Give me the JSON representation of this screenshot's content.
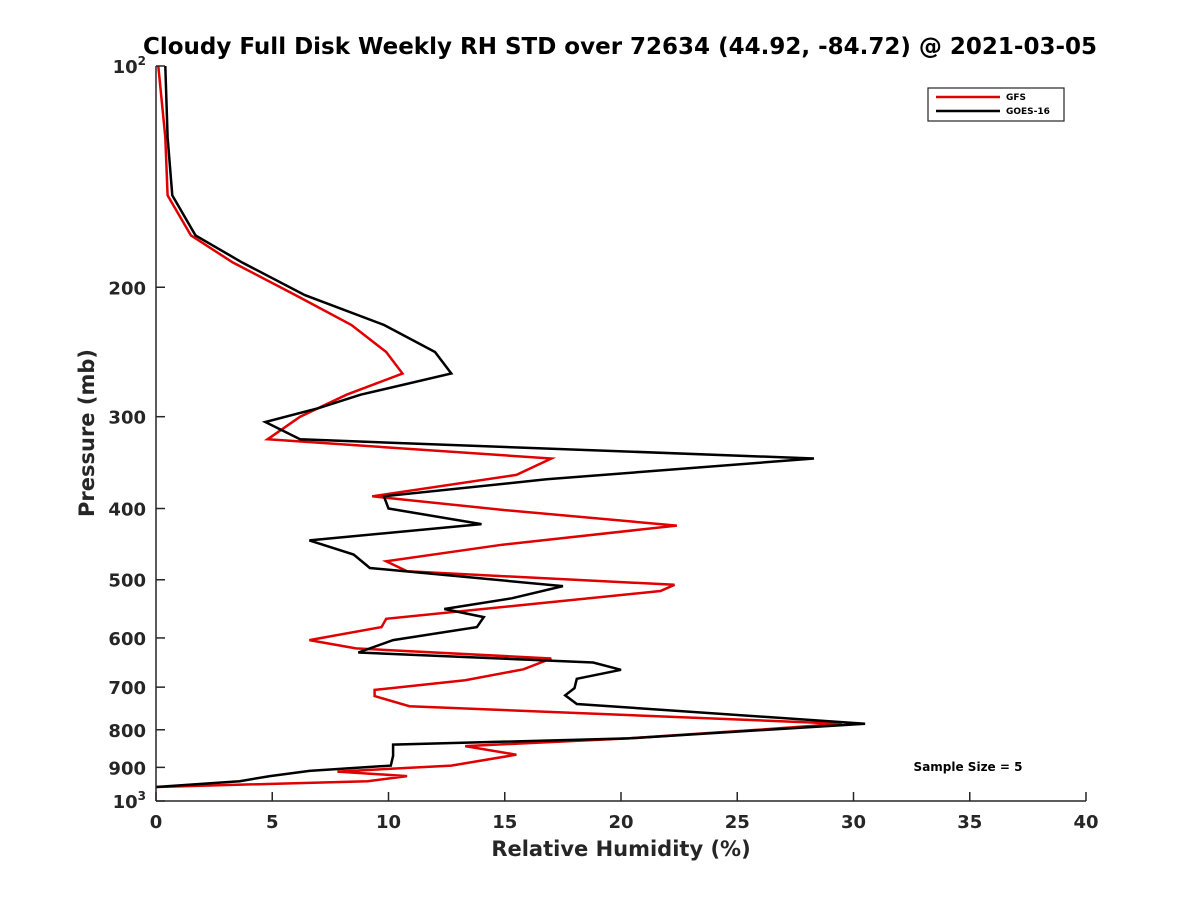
{
  "chart_data": {
    "type": "line",
    "title": "Cloudy Full Disk Weekly RH STD over 72634 (44.92, -84.72) @ 2021-03-05",
    "xlabel": "Relative Humidity (%)",
    "ylabel": "Pressure (mb)",
    "xlim": [
      0,
      40
    ],
    "ylim": [
      100,
      1000
    ],
    "y_scale": "log",
    "y_reversed": true,
    "x_ticks": [
      0,
      5,
      10,
      15,
      20,
      25,
      30,
      35,
      40
    ],
    "y_ticks": [
      {
        "value": 100,
        "base": "10",
        "exp": "2"
      },
      {
        "value": 200,
        "label": "200"
      },
      {
        "value": 300,
        "label": "300"
      },
      {
        "value": 400,
        "label": "400"
      },
      {
        "value": 500,
        "label": "500"
      },
      {
        "value": 600,
        "label": "600"
      },
      {
        "value": 700,
        "label": "700"
      },
      {
        "value": 800,
        "label": "800"
      },
      {
        "value": 900,
        "label": "900"
      },
      {
        "value": 1000,
        "base": "10",
        "exp": "3"
      }
    ],
    "grid": false,
    "legend_position": "top-right",
    "annotation": "Sample Size = 5",
    "series": [
      {
        "name": "GFS",
        "color": "#e00000",
        "points": [
          [
            0.1,
            100
          ],
          [
            0.4,
            125
          ],
          [
            0.5,
            150
          ],
          [
            1.5,
            170
          ],
          [
            3.3,
            185
          ],
          [
            6,
            205
          ],
          [
            8.4,
            225
          ],
          [
            9.9,
            245
          ],
          [
            10.6,
            262
          ],
          [
            8.2,
            280
          ],
          [
            6.2,
            300
          ],
          [
            4.8,
            322
          ],
          [
            17,
            342
          ],
          [
            15.5,
            360
          ],
          [
            9.3,
            385
          ],
          [
            15,
            402
          ],
          [
            22.4,
            422
          ],
          [
            14.9,
            448
          ],
          [
            9.9,
            472
          ],
          [
            10.8,
            487
          ],
          [
            22.3,
            508
          ],
          [
            21.7,
            518
          ],
          [
            15.3,
            543
          ],
          [
            9.9,
            565
          ],
          [
            9.7,
            580
          ],
          [
            6.6,
            604
          ],
          [
            8.6,
            620
          ],
          [
            17,
            640
          ],
          [
            15.8,
            662
          ],
          [
            13.3,
            685
          ],
          [
            9.4,
            706
          ],
          [
            9.4,
            720
          ],
          [
            10.9,
            743
          ],
          [
            29.5,
            785
          ],
          [
            25.9,
            800
          ],
          [
            20.3,
            822
          ],
          [
            13.3,
            842
          ],
          [
            15.5,
            865
          ],
          [
            12.7,
            895
          ],
          [
            7.8,
            912
          ],
          [
            10.8,
            925
          ],
          [
            9.1,
            940
          ],
          [
            0,
            957
          ]
        ]
      },
      {
        "name": "GOES-16",
        "color": "#000000",
        "points": [
          [
            0.4,
            100
          ],
          [
            0.5,
            125
          ],
          [
            0.7,
            150
          ],
          [
            1.7,
            170
          ],
          [
            3.7,
            185
          ],
          [
            6.4,
            205
          ],
          [
            9.8,
            225
          ],
          [
            12,
            245
          ],
          [
            12.7,
            262
          ],
          [
            8.8,
            280
          ],
          [
            7,
            292
          ],
          [
            4.7,
            305
          ],
          [
            6.2,
            322
          ],
          [
            28.3,
            342
          ],
          [
            16.8,
            365
          ],
          [
            9.8,
            385
          ],
          [
            10,
            400
          ],
          [
            14,
            420
          ],
          [
            6.6,
            442
          ],
          [
            8.5,
            462
          ],
          [
            9.2,
            482
          ],
          [
            17.5,
            510
          ],
          [
            15.3,
            530
          ],
          [
            12.4,
            548
          ],
          [
            14.1,
            562
          ],
          [
            13.8,
            580
          ],
          [
            10.2,
            604
          ],
          [
            8.7,
            628
          ],
          [
            18.8,
            648
          ],
          [
            20,
            663
          ],
          [
            18.1,
            682
          ],
          [
            18,
            702
          ],
          [
            17.6,
            718
          ],
          [
            18.1,
            738
          ],
          [
            30.5,
            785
          ],
          [
            20.3,
            822
          ],
          [
            10.2,
            838
          ],
          [
            10.2,
            868
          ],
          [
            10.1,
            895
          ],
          [
            6.6,
            910
          ],
          [
            4.9,
            925
          ],
          [
            3.6,
            940
          ],
          [
            0,
            957
          ]
        ]
      }
    ]
  }
}
